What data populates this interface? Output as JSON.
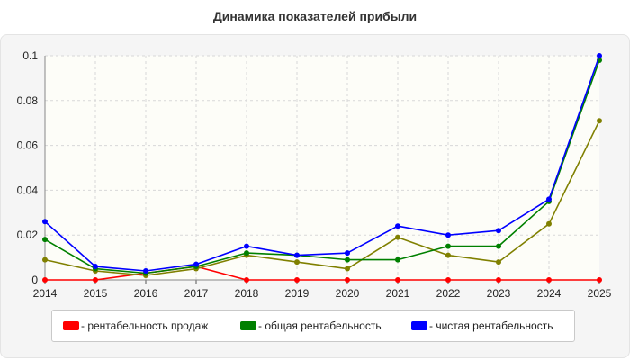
{
  "chart_data": {
    "type": "line",
    "title": "Динамика показателей прибыли",
    "x": [
      2014,
      2015,
      2016,
      2017,
      2018,
      2019,
      2020,
      2021,
      2022,
      2023,
      2024,
      2025
    ],
    "ylim": [
      0,
      0.1
    ],
    "yticks": [
      "0",
      "0.02",
      "0.04",
      "0.06",
      "0.08",
      "0.1"
    ],
    "grid": true,
    "legend_position": "bottom",
    "series": [
      {
        "name": "рентабельность продаж",
        "color": "#ff0000",
        "values": [
          0,
          0,
          0.003,
          0.006,
          0,
          0,
          0,
          0,
          0,
          0,
          0,
          0
        ]
      },
      {
        "name": "",
        "color": "#808000",
        "values": [
          0.009,
          0.004,
          0.002,
          0.005,
          0.011,
          0.008,
          0.005,
          0.019,
          0.011,
          0.008,
          0.025,
          0.071
        ]
      },
      {
        "name": "общая рентабельность",
        "color": "#008000",
        "values": [
          0.018,
          0.005,
          0.003,
          0.006,
          0.012,
          0.011,
          0.009,
          0.009,
          0.015,
          0.015,
          0.035,
          0.098
        ]
      },
      {
        "name": "чистая рентабельность",
        "color": "#0000ff",
        "values": [
          0.026,
          0.006,
          0.004,
          0.007,
          0.015,
          0.011,
          0.012,
          0.024,
          0.02,
          0.022,
          0.036,
          0.1
        ]
      }
    ]
  },
  "legend": {
    "items": [
      {
        "label": "- рентабельность продаж",
        "color": "#ff0000"
      },
      {
        "label": "- общая рентабельность",
        "color": "#008000"
      },
      {
        "label": "- чистая рентабельность",
        "color": "#0000ff"
      }
    ]
  }
}
